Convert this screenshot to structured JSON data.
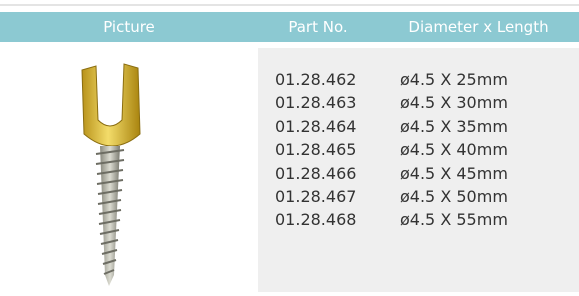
{
  "table": {
    "header": [
      "Picture",
      "Part No.",
      "Diameter x Length"
    ],
    "rows": [
      [
        "01.28.462",
        "ø4.5 X 25mm"
      ],
      [
        "01.28.463",
        "ø4.5 X 30mm"
      ],
      [
        "01.28.464",
        "ø4.5 X 35mm"
      ],
      [
        "01.28.465",
        "ø4.5 X 40mm"
      ],
      [
        "01.28.466",
        "ø4.5 X 45mm"
      ],
      [
        "01.28.467",
        "ø4.5 X 50mm"
      ],
      [
        "01.28.468",
        "ø4.5 X 55mm"
      ]
    ]
  }
}
